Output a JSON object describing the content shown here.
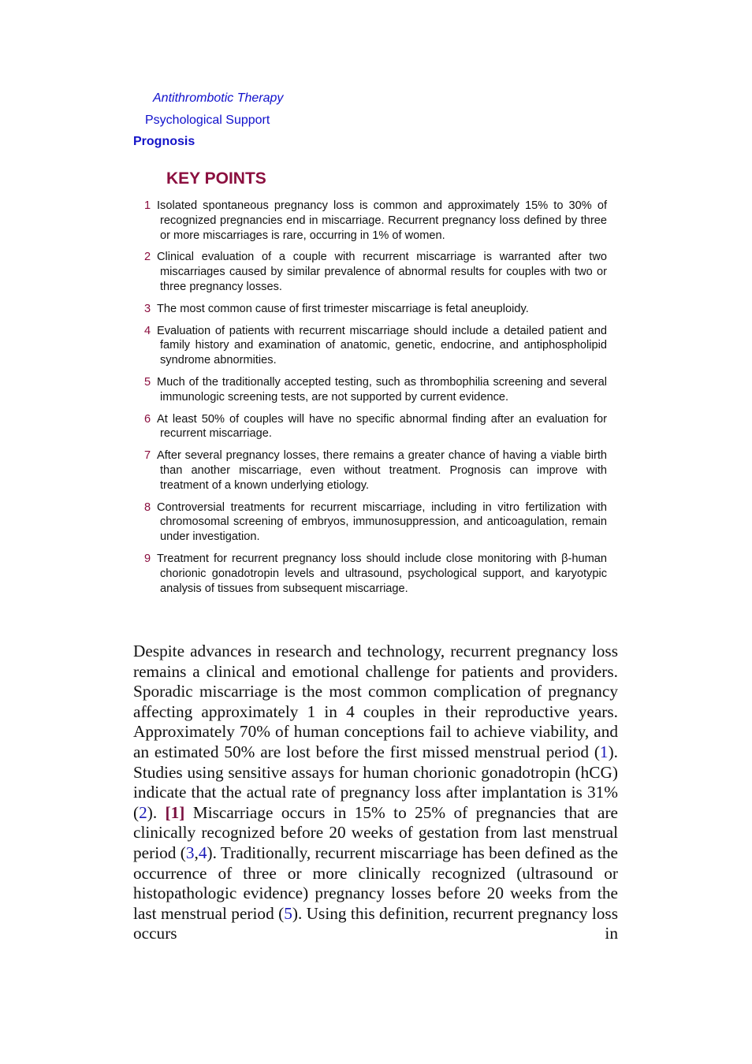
{
  "toc": {
    "item1": "Antithrombotic Therapy",
    "item2": "Psychological Support",
    "item3": "Prognosis"
  },
  "key_points": {
    "title": "KEY POINTS",
    "items": [
      {
        "num": "1",
        "text": "Isolated spontaneous pregnancy loss is common and approximately 15% to 30% of recognized pregnancies end in miscarriage. Recurrent pregnancy loss defined by three or more miscarriages is rare, occurring in 1% of women."
      },
      {
        "num": "2",
        "text": "Clinical evaluation of a couple with recurrent miscarriage is warranted after two miscarriages caused by similar prevalence of abnormal results for couples with two or three pregnancy losses."
      },
      {
        "num": "3",
        "text": "The most common cause of first trimester miscarriage is fetal aneuploidy."
      },
      {
        "num": "4",
        "text": "Evaluation of patients with recurrent miscarriage should include a detailed patient and family history and examination of anatomic, genetic, endocrine, and antiphospholipid syndrome abnormities."
      },
      {
        "num": "5",
        "text": "Much of the traditionally accepted testing, such as thrombophilia screening and several immunologic screening tests, are not supported by current evidence."
      },
      {
        "num": "6",
        "text": "At least 50% of couples will have no specific abnormal finding after an evaluation for recurrent miscarriage."
      },
      {
        "num": "7",
        "text": "After several pregnancy losses, there remains a greater chance of having a viable birth than another miscarriage, even without treatment. Prognosis can improve with treatment of a known underlying etiology."
      },
      {
        "num": "8",
        "text": "Controversial treatments for recurrent miscarriage, including in vitro fertilization with chromosomal screening of embryos, immunosuppression, and anticoagulation, remain under investigation."
      },
      {
        "num": "9",
        "text": "Treatment for recurrent pregnancy loss should include close monitoring with β-human chorionic gonadotropin levels and ultrasound, psychological support, and karyotypic analysis of tissues from subsequent miscarriage."
      }
    ]
  },
  "body": {
    "seg1": "Despite advances in research and technology, recurrent pregnancy loss remains a clinical and emotional challenge for patients and providers. Sporadic miscarriage is the most common complication of pregnancy affecting approximately 1 in 4 couples in their reproductive years. Approximately 70% of human conceptions fail to achieve viability, and an estimated 50% are lost before the first missed menstrual period (",
    "ref1": "1",
    "seg2": "). Studies using sensitive assays for human chorionic gonadotropin (hCG) indicate that the actual rate of pregnancy loss after implantation is 31% (",
    "ref2": "2",
    "seg3": "). ",
    "ref_bold": "[1]",
    "seg4": " Miscarriage occurs in 15% to 25% of pregnancies that are clinically recognized before 20 weeks of gestation from last menstrual period (",
    "ref3": "3",
    "seg5": ",",
    "ref4": "4",
    "seg6": "). Traditionally, recurrent miscarriage has been defined as the occurrence of three or more clinically recognized (ultrasound or histopathologic evidence) pregnancy losses before 20 weeks from the last menstrual period (",
    "ref5": "5",
    "seg7": "). Using this definition, recurrent pregnancy loss occurs in"
  }
}
